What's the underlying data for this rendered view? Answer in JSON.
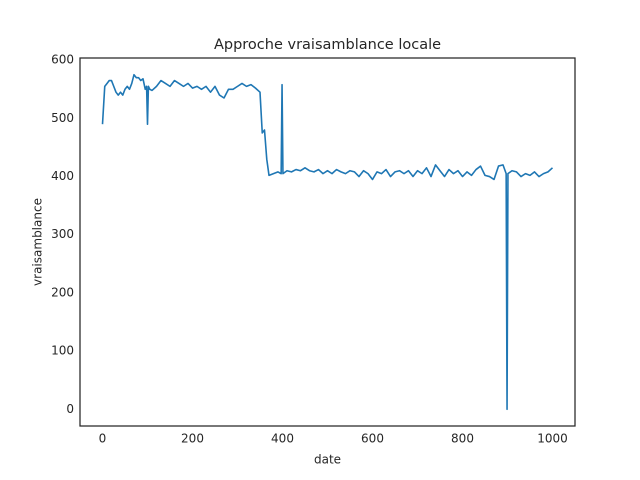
{
  "chart_data": {
    "type": "line",
    "title": "Approche vraisamblance locale",
    "xlabel": "date",
    "ylabel": "vraisamblance",
    "x": [
      0,
      5,
      10,
      15,
      20,
      25,
      30,
      35,
      40,
      45,
      50,
      55,
      60,
      65,
      70,
      75,
      80,
      85,
      90,
      95,
      98,
      100,
      102,
      105,
      110,
      120,
      130,
      140,
      150,
      160,
      170,
      180,
      190,
      200,
      210,
      220,
      230,
      240,
      250,
      260,
      270,
      280,
      290,
      300,
      310,
      320,
      330,
      340,
      350,
      355,
      360,
      365,
      370,
      380,
      390,
      397,
      399,
      401,
      410,
      420,
      430,
      440,
      450,
      460,
      470,
      480,
      490,
      500,
      510,
      520,
      530,
      540,
      550,
      560,
      570,
      580,
      590,
      600,
      610,
      620,
      630,
      640,
      650,
      660,
      670,
      680,
      690,
      700,
      710,
      720,
      730,
      740,
      750,
      760,
      770,
      780,
      790,
      800,
      810,
      820,
      830,
      840,
      850,
      860,
      870,
      880,
      890,
      897,
      899,
      901,
      910,
      920,
      930,
      940,
      950,
      960,
      970,
      980,
      990,
      1000
    ],
    "series": [
      {
        "color": "#1f77b4",
        "values": [
          490,
          555,
          560,
          565,
          565,
          555,
          545,
          540,
          545,
          540,
          550,
          555,
          550,
          560,
          575,
          570,
          570,
          565,
          568,
          550,
          555,
          490,
          555,
          550,
          548,
          555,
          565,
          560,
          555,
          565,
          560,
          555,
          560,
          552,
          555,
          550,
          555,
          545,
          555,
          540,
          535,
          550,
          550,
          555,
          560,
          555,
          558,
          552,
          545,
          475,
          480,
          430,
          402,
          405,
          408,
          405,
          558,
          405,
          410,
          408,
          412,
          410,
          415,
          410,
          408,
          412,
          405,
          410,
          405,
          412,
          408,
          405,
          410,
          408,
          400,
          410,
          405,
          395,
          408,
          405,
          412,
          400,
          408,
          410,
          405,
          410,
          400,
          410,
          405,
          415,
          400,
          420,
          410,
          400,
          412,
          405,
          410,
          400,
          408,
          402,
          412,
          418,
          402,
          400,
          395,
          418,
          420,
          405,
          0,
          405,
          410,
          408,
          400,
          405,
          402,
          408,
          400,
          405,
          408,
          415
        ]
      }
    ],
    "xlim": [
      -50,
      1050
    ],
    "ylim": [
      -28.75,
      603.75
    ],
    "xticks": [
      0,
      200,
      400,
      600,
      800,
      1000
    ],
    "yticks": [
      0,
      100,
      200,
      300,
      400,
      500,
      600
    ],
    "grid": false
  }
}
